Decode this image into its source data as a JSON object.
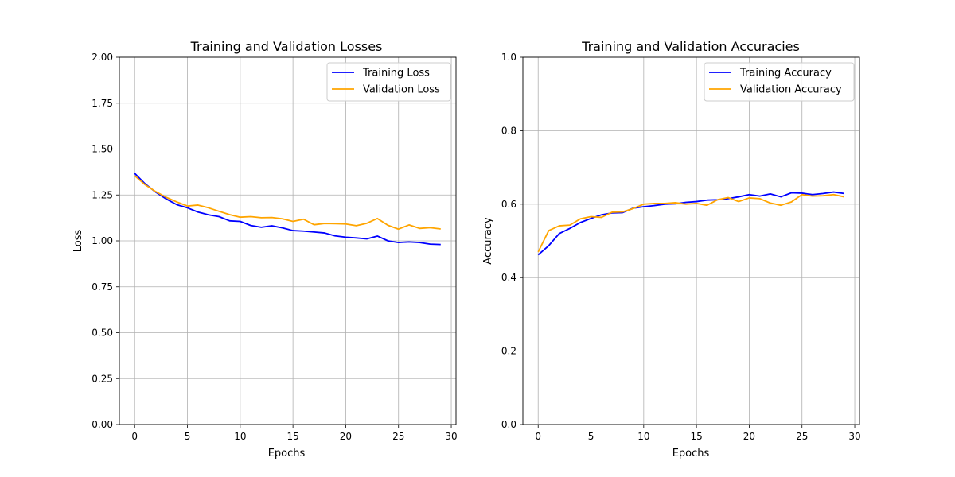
{
  "chart_data": [
    {
      "type": "line",
      "title": "Training and Validation Losses",
      "xlabel": "Epochs",
      "ylabel": "Loss",
      "xlim": [
        -1.45,
        30.45
      ],
      "ylim": [
        0,
        2
      ],
      "xticks": [
        0,
        5,
        10,
        15,
        20,
        25,
        30
      ],
      "yticks": [
        0.0,
        0.25,
        0.5,
        0.75,
        1.0,
        1.25,
        1.5,
        1.75,
        2.0
      ],
      "ytick_labels": [
        "0.00",
        "0.25",
        "0.50",
        "0.75",
        "1.00",
        "1.25",
        "1.50",
        "1.75",
        "2.00"
      ],
      "grid": true,
      "legend": "top-right",
      "x": [
        0,
        1,
        2,
        3,
        4,
        5,
        6,
        7,
        8,
        9,
        10,
        11,
        12,
        13,
        14,
        15,
        16,
        17,
        18,
        19,
        20,
        21,
        22,
        23,
        24,
        25,
        26,
        27,
        28,
        29
      ],
      "series": [
        {
          "name": "Training Loss",
          "color": "#0000ff",
          "values": [
            1.368,
            1.31,
            1.265,
            1.228,
            1.197,
            1.18,
            1.157,
            1.142,
            1.132,
            1.109,
            1.106,
            1.084,
            1.074,
            1.082,
            1.071,
            1.056,
            1.053,
            1.048,
            1.043,
            1.027,
            1.02,
            1.016,
            1.011,
            1.026,
            1.0,
            0.991,
            0.994,
            0.991,
            0.982,
            0.98
          ]
        },
        {
          "name": "Validation Loss",
          "color": "#ffa500",
          "values": [
            1.355,
            1.305,
            1.268,
            1.237,
            1.212,
            1.19,
            1.195,
            1.18,
            1.161,
            1.143,
            1.129,
            1.132,
            1.126,
            1.127,
            1.12,
            1.106,
            1.118,
            1.088,
            1.095,
            1.094,
            1.092,
            1.083,
            1.096,
            1.122,
            1.085,
            1.064,
            1.087,
            1.068,
            1.072,
            1.065
          ]
        }
      ]
    },
    {
      "type": "line",
      "title": "Training and Validation Accuracies",
      "xlabel": "Epochs",
      "ylabel": "Accuracy",
      "xlim": [
        -1.45,
        30.45
      ],
      "ylim": [
        0,
        1
      ],
      "xticks": [
        0,
        5,
        10,
        15,
        20,
        25,
        30
      ],
      "yticks": [
        0.0,
        0.2,
        0.4,
        0.6,
        0.8,
        1.0
      ],
      "ytick_labels": [
        "0.0",
        "0.2",
        "0.4",
        "0.6",
        "0.8",
        "1.0"
      ],
      "grid": true,
      "legend": "top-right",
      "x": [
        0,
        1,
        2,
        3,
        4,
        5,
        6,
        7,
        8,
        9,
        10,
        11,
        12,
        13,
        14,
        15,
        16,
        17,
        18,
        19,
        20,
        21,
        22,
        23,
        24,
        25,
        26,
        27,
        28,
        29
      ],
      "series": [
        {
          "name": "Training Accuracy",
          "color": "#0000ff",
          "values": [
            0.462,
            0.487,
            0.52,
            0.534,
            0.55,
            0.561,
            0.571,
            0.576,
            0.577,
            0.589,
            0.593,
            0.596,
            0.6,
            0.601,
            0.605,
            0.607,
            0.611,
            0.612,
            0.615,
            0.62,
            0.626,
            0.622,
            0.628,
            0.62,
            0.631,
            0.63,
            0.626,
            0.629,
            0.633,
            0.629
          ]
        },
        {
          "name": "Validation Accuracy",
          "color": "#ffa500",
          "values": [
            0.47,
            0.528,
            0.541,
            0.543,
            0.56,
            0.566,
            0.564,
            0.578,
            0.579,
            0.588,
            0.6,
            0.602,
            0.602,
            0.604,
            0.6,
            0.602,
            0.597,
            0.612,
            0.618,
            0.607,
            0.617,
            0.615,
            0.603,
            0.597,
            0.606,
            0.626,
            0.622,
            0.623,
            0.626,
            0.62
          ]
        }
      ]
    }
  ]
}
